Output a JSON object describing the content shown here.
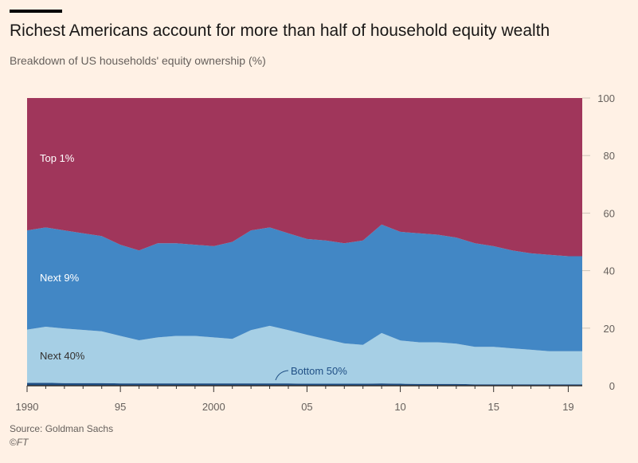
{
  "header": {
    "title": "Richest Americans account for more than half of household equity wealth",
    "subtitle": "Breakdown of US households' equity ownership (%)"
  },
  "footer": {
    "source": "Source: Goldman Sachs",
    "copyright_symbol": "©",
    "copyright_brand": "FT"
  },
  "colors": {
    "top1": "#a0365b",
    "next9": "#4287c5",
    "next40": "#a6cfe5",
    "bottom50": "#1f4f85",
    "background": "#fff1e5"
  },
  "chart_data": {
    "type": "area",
    "stacked": true,
    "percent": true,
    "x": [
      1990,
      1991,
      1992,
      1993,
      1994,
      1995,
      1996,
      1997,
      1998,
      1999,
      2000,
      2001,
      2002,
      2003,
      2004,
      2005,
      2006,
      2007,
      2008,
      2009,
      2010,
      2011,
      2012,
      2013,
      2014,
      2015,
      2016,
      2017,
      2018,
      2019
    ],
    "xlim": [
      1990,
      2019.75
    ],
    "xticks": [
      {
        "value": 1990,
        "label": "1990"
      },
      {
        "value": 1995,
        "label": "95"
      },
      {
        "value": 2000,
        "label": "2000"
      },
      {
        "value": 2005,
        "label": "05"
      },
      {
        "value": 2010,
        "label": "10"
      },
      {
        "value": 2015,
        "label": "15"
      },
      {
        "value": 2019,
        "label": "19"
      }
    ],
    "ylim": [
      0,
      100
    ],
    "yticks": [
      0,
      20,
      40,
      60,
      80,
      100
    ],
    "y_axis_side": "right",
    "series": [
      {
        "name": "Bottom 50%",
        "key": "bottom50",
        "values": [
          1.0,
          1.0,
          0.9,
          0.9,
          0.9,
          0.8,
          0.8,
          0.8,
          0.8,
          0.8,
          0.8,
          0.8,
          0.8,
          0.8,
          0.8,
          0.7,
          0.7,
          0.7,
          0.7,
          0.8,
          0.7,
          0.6,
          0.6,
          0.6,
          0.5,
          0.5,
          0.5,
          0.5,
          0.5,
          0.5
        ]
      },
      {
        "name": "Next 40%",
        "key": "next40",
        "values": [
          18.5,
          19.5,
          19.0,
          18.5,
          18.0,
          16.5,
          15.0,
          16.0,
          16.5,
          16.5,
          16.0,
          15.5,
          18.5,
          20.0,
          18.5,
          17.0,
          15.5,
          14.0,
          13.5,
          17.5,
          15.0,
          14.5,
          14.5,
          14.0,
          13.0,
          13.0,
          12.5,
          12.0,
          11.5,
          11.5
        ]
      },
      {
        "name": "Next 9%",
        "key": "next9",
        "values": [
          34.5,
          34.5,
          34.1,
          33.6,
          33.1,
          31.7,
          31.2,
          32.7,
          32.2,
          31.7,
          31.7,
          33.7,
          34.7,
          34.2,
          33.7,
          33.3,
          34.3,
          34.8,
          36.3,
          37.7,
          37.8,
          37.9,
          37.4,
          36.9,
          36.0,
          35.0,
          34.0,
          33.5,
          33.5,
          33.0
        ]
      },
      {
        "name": "Top 1%",
        "key": "top1",
        "values": [
          46.0,
          45.0,
          46.0,
          47.0,
          48.0,
          51.0,
          53.0,
          50.5,
          50.5,
          51.0,
          51.5,
          50.0,
          46.0,
          45.0,
          47.0,
          49.0,
          49.5,
          50.5,
          49.5,
          44.0,
          46.5,
          47.0,
          47.5,
          48.5,
          50.5,
          51.5,
          53.0,
          54.0,
          54.5,
          55.0
        ]
      }
    ],
    "annotations": [
      {
        "text": "Top 1%",
        "series": "top1"
      },
      {
        "text": "Next 9%",
        "series": "next9"
      },
      {
        "text": "Next 40%",
        "series": "next40"
      },
      {
        "text": "Bottom 50%",
        "series": "bottom50"
      }
    ]
  }
}
